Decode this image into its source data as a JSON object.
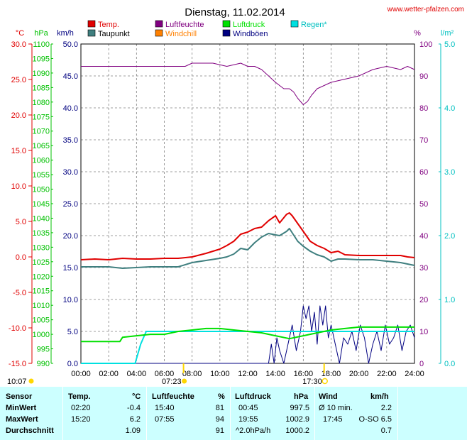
{
  "title": "Dienstag, 11.02.2014",
  "source_url": "www.wetter-pfalzen.com",
  "colors": {
    "temp": "#e00000",
    "dewpoint": "#3f7f7f",
    "humidity": "#800080",
    "windchill": "#ff8000",
    "pressure": "#00e000",
    "gusts": "#000080",
    "rain": "#00e0e0",
    "left_temp_axis": "#e00000",
    "left_hpa_axis": "#00c000",
    "right_pct_axis": "#800080",
    "right_rain_axis": "#00c0c0",
    "stats_bg": "#ccffff"
  },
  "axis_headers": {
    "temp": "°C",
    "hpa": "hPa",
    "kmh": "km/h",
    "pct": "%",
    "rain": "l/m²"
  },
  "legend": [
    {
      "label": "Temp.",
      "color": "#e00000"
    },
    {
      "label": "Luftfeuchte",
      "color": "#800080"
    },
    {
      "label": "Luftdruck",
      "color": "#00e000"
    },
    {
      "label": "Regen*",
      "color": "#00e0e0"
    },
    {
      "label": "Taupunkt",
      "color": "#3f7f7f"
    },
    {
      "label": "Windchill",
      "color": "#ff8000"
    },
    {
      "label": "Windböen",
      "color": "#000080"
    }
  ],
  "sun": {
    "sunset_prev": "10:07",
    "sunrise": "07:23",
    "sunset": "17:30"
  },
  "chart_data": {
    "type": "line",
    "xlabel": "",
    "x_ticks": [
      "00:00",
      "02:00",
      "04:00",
      "06:00",
      "08:00",
      "10:00",
      "12:00",
      "14:00",
      "16:00",
      "18:00",
      "20:00",
      "22:00",
      "24:00"
    ],
    "axes": {
      "temp_c": {
        "range": [
          -15,
          30
        ],
        "ticks": [
          "-15.0",
          "-10.0",
          "-5.0",
          "0.0",
          "5.0",
          "10.0",
          "15.0",
          "20.0",
          "25.0",
          "30.0"
        ]
      },
      "pressure_hpa": {
        "range": [
          990,
          1100
        ],
        "ticks": [
          "990",
          "995",
          "1000",
          "1005",
          "1010",
          "1015",
          "1020",
          "1025",
          "1030",
          "1035",
          "1040",
          "1045",
          "1050",
          "1055",
          "1060",
          "1065",
          "1070",
          "1075",
          "1080",
          "1085",
          "1090",
          "1095",
          "1100"
        ]
      },
      "wind_kmh": {
        "range": [
          0,
          50
        ],
        "ticks": [
          "0.0",
          "5.0",
          "10.0",
          "15.0",
          "20.0",
          "25.0",
          "30.0",
          "35.0",
          "40.0",
          "45.0",
          "50.0"
        ]
      },
      "humidity_pct": {
        "range": [
          0,
          100
        ],
        "ticks": [
          "0",
          "10",
          "20",
          "30",
          "40",
          "50",
          "60",
          "70",
          "80",
          "90",
          "100"
        ]
      },
      "rain_lm2": {
        "range": [
          0,
          5
        ],
        "ticks": [
          "0.0",
          "1.0",
          "2.0",
          "3.0",
          "4.0",
          "5.0"
        ]
      }
    },
    "series": [
      {
        "name": "Temp.",
        "axis": "temp_c",
        "x": [
          0,
          1,
          2,
          3,
          4,
          5,
          6,
          7,
          8,
          9,
          10,
          10.5,
          11,
          11.5,
          12,
          12.5,
          13,
          13.5,
          14,
          14.3,
          14.8,
          15,
          15.2,
          15.6,
          16,
          16.5,
          17,
          17.5,
          18,
          18.5,
          19,
          20,
          21,
          22,
          23,
          23.5,
          24
        ],
        "values": [
          -0.4,
          -0.3,
          -0.4,
          -0.2,
          -0.3,
          -0.3,
          -0.2,
          -0.2,
          0.0,
          0.5,
          1.1,
          1.6,
          2.2,
          3.2,
          3.5,
          4.0,
          4.2,
          5.1,
          5.8,
          4.8,
          6.0,
          6.2,
          5.8,
          4.7,
          3.6,
          2.2,
          1.6,
          1.2,
          0.6,
          0.8,
          0.3,
          0.2,
          0.2,
          0.2,
          0.2,
          0.0,
          -0.1
        ]
      },
      {
        "name": "Taupunkt",
        "axis": "temp_c",
        "x": [
          0,
          1,
          2,
          3,
          4,
          5,
          6,
          7,
          8,
          9,
          10,
          10.5,
          11,
          11.5,
          12,
          12.5,
          13,
          13.5,
          14,
          14.3,
          14.8,
          15,
          15.2,
          15.6,
          16,
          16.5,
          17,
          17.5,
          18,
          18.5,
          19,
          20,
          21,
          22,
          23,
          23.5,
          24
        ],
        "values": [
          -1.4,
          -1.4,
          -1.4,
          -1.6,
          -1.5,
          -1.4,
          -1.4,
          -1.4,
          -0.8,
          -0.5,
          -0.2,
          0.0,
          0.4,
          1.2,
          1.0,
          2.0,
          2.8,
          3.3,
          3.1,
          3.0,
          3.6,
          4.0,
          3.4,
          2.2,
          1.5,
          0.8,
          0.3,
          0.0,
          -0.6,
          -0.3,
          -0.3,
          -0.4,
          -0.4,
          -0.6,
          -0.8,
          -1.0,
          -1.2
        ]
      },
      {
        "name": "Luftfeuchte",
        "axis": "humidity_pct",
        "x": [
          0,
          2,
          4,
          6,
          7.5,
          8,
          9.5,
          10.5,
          11.5,
          12,
          12.5,
          13,
          13.5,
          14,
          14.3,
          14.6,
          15,
          15.3,
          15.6,
          16,
          16.3,
          16.6,
          17,
          17.5,
          18,
          19,
          20,
          21,
          22,
          23,
          23.5,
          24
        ],
        "values": [
          93,
          93,
          93,
          93,
          93,
          94,
          94,
          93,
          94,
          93,
          93,
          92,
          90,
          88,
          87,
          86,
          86,
          85,
          83,
          81,
          82,
          84,
          86,
          87,
          88,
          89,
          90,
          92,
          93,
          92,
          93,
          92
        ]
      },
      {
        "name": "Luftdruck",
        "axis": "pressure_hpa",
        "x": [
          0,
          1,
          2,
          2.8,
          3,
          4,
          5,
          6,
          7,
          8,
          9,
          10,
          11,
          12,
          13,
          14,
          15,
          16,
          17,
          18,
          19,
          20,
          21,
          22,
          23,
          24
        ],
        "values": [
          997.5,
          997.5,
          997.5,
          997.5,
          999.0,
          999.5,
          1000.0,
          1000.0,
          1001.0,
          1001.5,
          1002.0,
          1002.0,
          1001.5,
          1001.0,
          1000.5,
          999.5,
          998.5,
          999.5,
          1000.5,
          1001.5,
          1002.0,
          1002.5,
          1002.5,
          1002.5,
          1002.5,
          1002.5
        ]
      },
      {
        "name": "Regen*",
        "axis": "rain_lm2",
        "x": [
          0,
          3.9,
          4.3,
          4.7,
          5,
          5.5,
          6,
          24
        ],
        "values": [
          0,
          0,
          0.3,
          0.5,
          0.5,
          0.5,
          0.5,
          0.5
        ]
      },
      {
        "name": "Windböen",
        "axis": "wind_kmh",
        "x": [
          0,
          13.5,
          13.7,
          13.9,
          14.1,
          14.3,
          14.6,
          14.9,
          15.2,
          15.5,
          15.8,
          16,
          16.2,
          16.4,
          16.6,
          16.8,
          17,
          17.2,
          17.4,
          17.6,
          17.8,
          18,
          18.3,
          18.6,
          18.9,
          19.2,
          19.5,
          19.8,
          20.1,
          20.4,
          20.7,
          21,
          21.3,
          21.6,
          21.9,
          22.2,
          22.5,
          22.8,
          23.1,
          23.4,
          23.7,
          24
        ],
        "values": [
          0,
          0,
          3,
          0,
          4,
          2,
          0,
          3,
          6,
          2,
          5,
          9,
          7,
          9,
          5,
          8,
          3,
          9,
          6,
          9,
          4,
          6,
          3,
          0,
          4,
          3,
          5,
          2,
          6,
          4,
          0,
          3,
          5,
          2,
          6,
          3,
          4,
          6,
          2,
          5,
          6,
          4
        ]
      }
    ]
  },
  "stats": {
    "headers": {
      "sensor": "Sensor",
      "temp": "Temp.",
      "temp_unit": "°C",
      "hum": "Luftfeuchte",
      "hum_unit": "%",
      "press": "Luftdruck",
      "press_unit": "hPa",
      "wind": "Wind",
      "wind_unit": "km/h"
    },
    "rows": [
      {
        "label": "MinWert",
        "temp_time": "02:20",
        "temp_val": "-0.4",
        "hum_time": "15:40",
        "hum_val": "81",
        "press_time": "00:45",
        "press_val": "997.5",
        "wind_time": "Ø 10 min.",
        "wind_val": "2.2"
      },
      {
        "label": "MaxWert",
        "temp_time": "15:20",
        "temp_val": "6.2",
        "hum_time": "07:55",
        "hum_val": "94",
        "press_time": "19:55",
        "press_val": "1002.9",
        "wind_time": "17:45",
        "wind_val": "O-SO 6.5"
      },
      {
        "label": "Durchschnitt",
        "temp_time": "",
        "temp_val": "1.09",
        "hum_time": "",
        "hum_val": "91",
        "press_time": "^2.0hPa/h",
        "press_val": "1000.2",
        "wind_time": "",
        "wind_val": "0.7"
      }
    ]
  }
}
